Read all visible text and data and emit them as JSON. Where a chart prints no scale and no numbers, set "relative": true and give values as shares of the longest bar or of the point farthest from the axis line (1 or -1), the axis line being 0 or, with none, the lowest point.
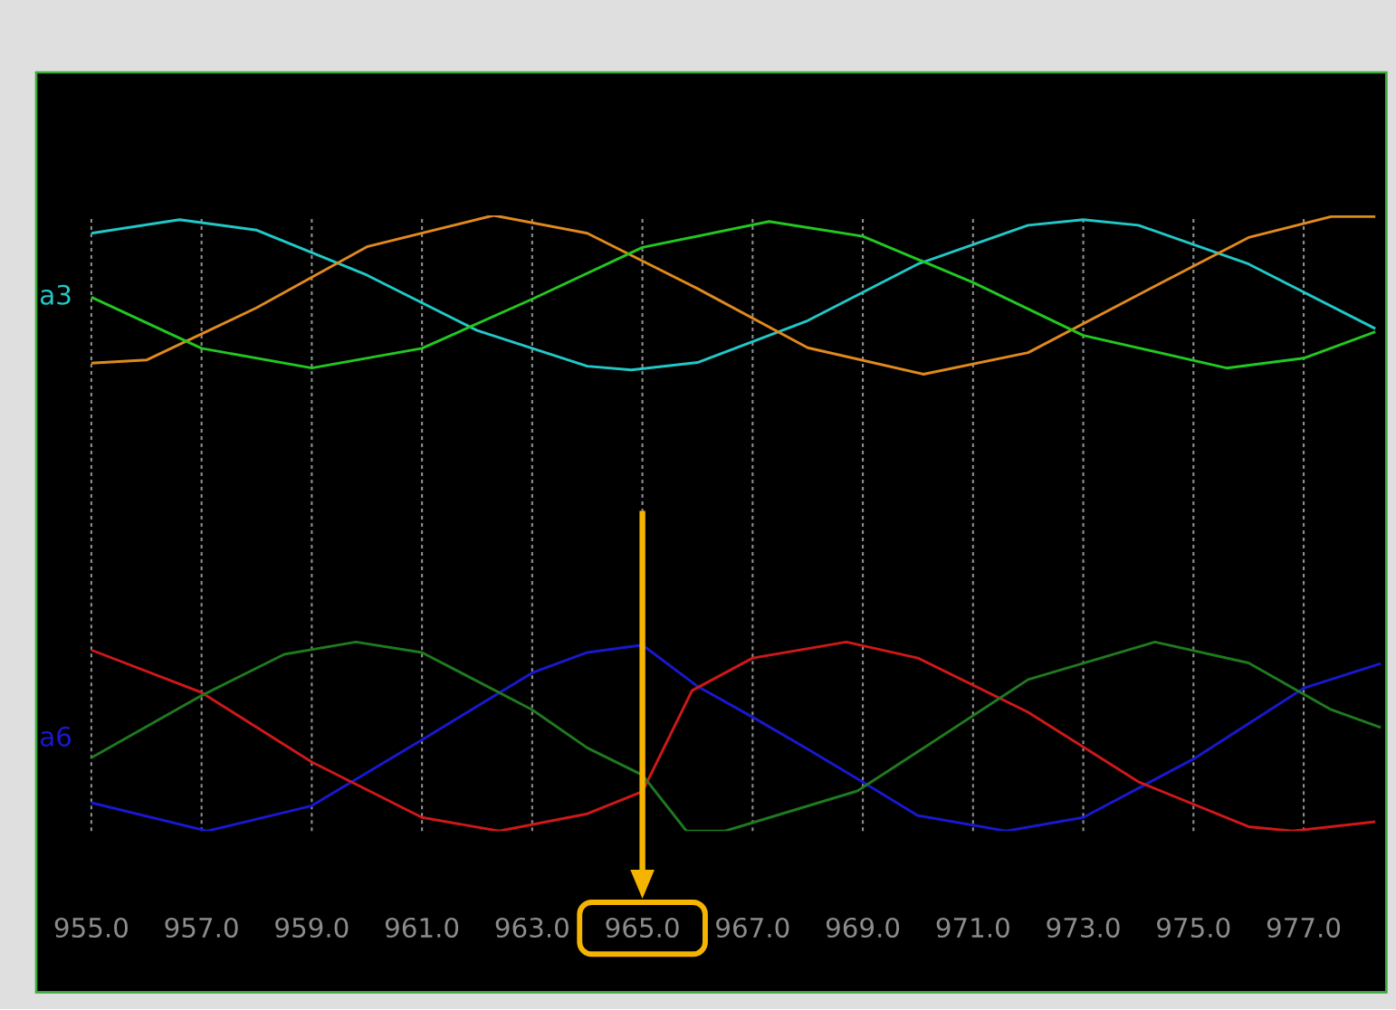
{
  "chart_data": {
    "type": "line",
    "relative": true,
    "grid": "x",
    "xlim": [
      954,
      978.5
    ],
    "xticks": [
      {
        "value": 955,
        "label": "955.0"
      },
      {
        "value": 957,
        "label": "957.0"
      },
      {
        "value": 959,
        "label": "959.0"
      },
      {
        "value": 961,
        "label": "961.0"
      },
      {
        "value": 963,
        "label": "963.0"
      },
      {
        "value": 965,
        "label": "965.0"
      },
      {
        "value": 967,
        "label": "967.0"
      },
      {
        "value": 969,
        "label": "969.0"
      },
      {
        "value": 971,
        "label": "971.0"
      },
      {
        "value": 973,
        "label": "973.0"
      },
      {
        "value": 975,
        "label": "975.0"
      },
      {
        "value": 977,
        "label": "977.0"
      }
    ],
    "annotations": [
      "a3",
      "a6"
    ],
    "ref_lines": [
      {
        "axis": "x",
        "value": 965,
        "label": null,
        "color": "#f5b400"
      }
    ],
    "series": [
      {
        "color": "#22c8c8",
        "x": [
          955,
          956.6,
          958,
          960,
          962,
          964,
          964.8,
          966,
          968,
          970,
          972,
          973,
          974,
          976,
          978.3
        ],
        "values": [
          0.971,
          0.993,
          0.976,
          0.903,
          0.813,
          0.755,
          0.749,
          0.761,
          0.829,
          0.921,
          0.984,
          0.993,
          0.984,
          0.921,
          0.816
        ]
      },
      {
        "color": "#e08a1e",
        "x": [
          955,
          956,
          958,
          960,
          962.3,
          964,
          966,
          968,
          970.1,
          972,
          974,
          976,
          977.5,
          978.3
        ],
        "values": [
          0.76,
          0.765,
          0.85,
          0.949,
          1.0,
          0.971,
          0.881,
          0.785,
          0.742,
          0.777,
          0.871,
          0.964,
          0.998,
          0.998
        ]
      },
      {
        "color": "#22c822",
        "x": [
          955,
          957,
          959,
          961,
          963,
          965,
          967.3,
          969,
          971,
          973,
          975.6,
          977,
          978.3
        ],
        "values": [
          0.867,
          0.784,
          0.752,
          0.784,
          0.864,
          0.948,
          0.99,
          0.966,
          0.891,
          0.805,
          0.752,
          0.768,
          0.811
        ]
      },
      {
        "color": "#1818d0",
        "x": [
          955,
          957.1,
          959,
          961,
          963,
          964,
          965,
          966,
          967,
          968,
          968.9,
          970,
          971.6,
          973,
          975,
          977,
          978.4
        ],
        "values": [
          0.046,
          0.0,
          0.041,
          0.148,
          0.257,
          0.29,
          0.302,
          0.235,
          0.185,
          0.133,
          0.085,
          0.025,
          0.0,
          0.022,
          0.117,
          0.232,
          0.272
        ]
      },
      {
        "color": "#d01818",
        "x": [
          955,
          957,
          959,
          961,
          962.4,
          964,
          965,
          965.9,
          967,
          968.7,
          970,
          972,
          974,
          976,
          976.8,
          978.3
        ],
        "values": [
          0.294,
          0.225,
          0.112,
          0.022,
          0.0,
          0.028,
          0.064,
          0.228,
          0.281,
          0.307,
          0.281,
          0.193,
          0.08,
          0.007,
          0.0,
          0.015
        ]
      },
      {
        "color": "#1f7a1f",
        "x": [
          955,
          957,
          958.5,
          959.8,
          961,
          963,
          964,
          965,
          965.8,
          966.5,
          968.9,
          970,
          972,
          974.3,
          976,
          977.5,
          978.4
        ],
        "values": [
          0.119,
          0.22,
          0.287,
          0.307,
          0.29,
          0.197,
          0.135,
          0.091,
          0.0,
          0.0,
          0.065,
          0.129,
          0.246,
          0.307,
          0.273,
          0.197,
          0.168
        ]
      }
    ]
  }
}
